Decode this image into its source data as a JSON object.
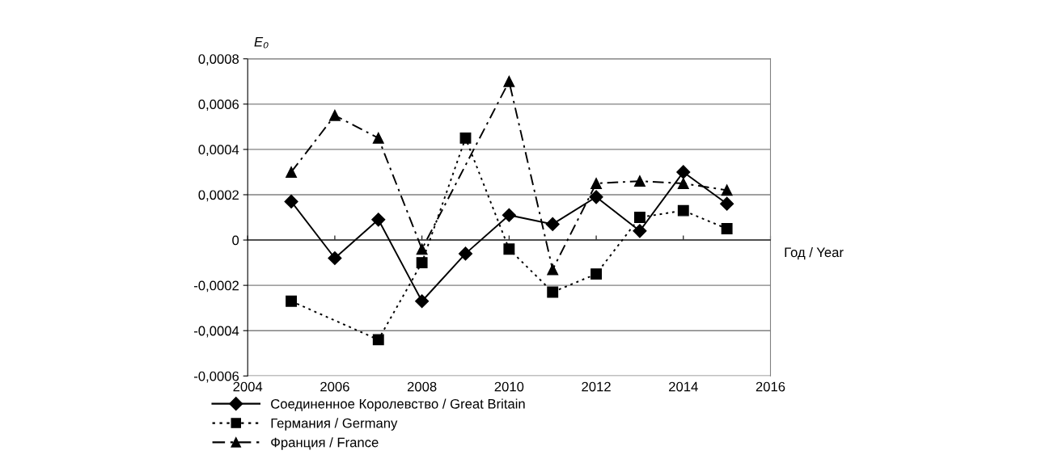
{
  "chart_data": {
    "type": "line",
    "ylabel": "E₀",
    "xlabel": "Год / Year",
    "x": [
      2005,
      2006,
      2007,
      2008,
      2009,
      2010,
      2011,
      2012,
      2013,
      2014,
      2015
    ],
    "series": [
      {
        "name": "Соединенное Королевство / Great Britain",
        "color": "#000000",
        "marker": "diamond",
        "line_style": "solid",
        "values": [
          0.00017,
          -8e-05,
          9e-05,
          -0.00027,
          -6e-05,
          0.00011,
          7e-05,
          0.00019,
          4e-05,
          0.0003,
          0.00016
        ]
      },
      {
        "name": "Германия / Germany",
        "color": "#000000",
        "marker": "square",
        "line_style": "dotted",
        "values": [
          -0.00027,
          null,
          -0.00044,
          -0.0001,
          0.00045,
          -4e-05,
          -0.00023,
          -0.00015,
          0.0001,
          0.00013,
          5e-05
        ]
      },
      {
        "name": "Франция / France",
        "color": "#000000",
        "marker": "triangle",
        "line_style": "dashed",
        "values": [
          0.0003,
          0.00055,
          0.00045,
          -4e-05,
          null,
          0.0007,
          -0.00013,
          0.00025,
          0.00026,
          0.00025,
          0.00022
        ]
      }
    ],
    "xlim": [
      2004,
      2016
    ],
    "xticks": [
      2004,
      2006,
      2008,
      2010,
      2012,
      2014,
      2016
    ],
    "ylim": [
      -0.0006,
      0.0008
    ],
    "yticks": [
      {
        "value": -0.0006,
        "label": "-0,0006"
      },
      {
        "value": -0.0004,
        "label": "-0,0004"
      },
      {
        "value": -0.0002,
        "label": "-0,0002"
      },
      {
        "value": 0,
        "label": "0"
      },
      {
        "value": 0.0002,
        "label": "0,0002"
      },
      {
        "value": 0.0004,
        "label": "0,0004"
      },
      {
        "value": 0.0006,
        "label": "0,0006"
      },
      {
        "value": 0.0008,
        "label": "0,0008"
      }
    ],
    "grid": "y",
    "legend": "bottom"
  }
}
